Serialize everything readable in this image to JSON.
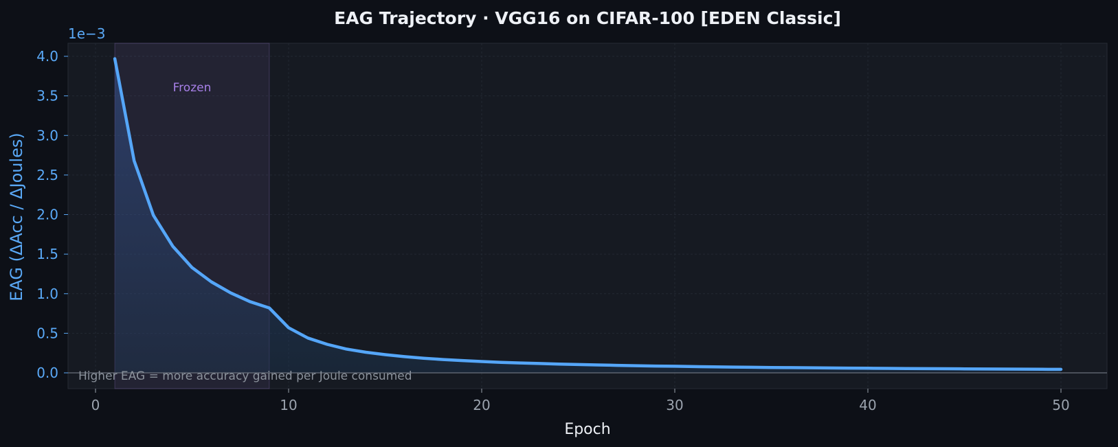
{
  "chart_data": {
    "type": "line",
    "title": "EAG Trajectory  ·  VGG16 on CIFAR-100  [EDEN Classic]",
    "xlabel": "Epoch",
    "ylabel": "EAG  (ΔAcc / ΔJoules)",
    "y_offset_label": "1e−3",
    "xlim": [
      -1.5,
      52.5
    ],
    "ylim": [
      -0.0002,
      0.00417
    ],
    "x_ticks": [
      0,
      10,
      20,
      30,
      40,
      50
    ],
    "y_ticks": [
      0.0,
      0.0005,
      0.001,
      0.0015,
      0.002,
      0.0025,
      0.003,
      0.0035,
      0.004
    ],
    "y_tick_labels": [
      "0.0",
      "0.5",
      "1.0",
      "1.5",
      "2.0",
      "2.5",
      "3.0",
      "3.5",
      "4.0"
    ],
    "grid": true,
    "fill_under": true,
    "series": [
      {
        "x": [
          1,
          2,
          3,
          4,
          5,
          6,
          7,
          8,
          9,
          10,
          11,
          12,
          13,
          14,
          15,
          16,
          17,
          18,
          19,
          20,
          21,
          22,
          23,
          24,
          25,
          26,
          27,
          28,
          29,
          30,
          31,
          32,
          33,
          34,
          35,
          36,
          37,
          38,
          39,
          40,
          41,
          42,
          43,
          44,
          45,
          46,
          47,
          48,
          49,
          50
        ],
        "values": [
          0.00397,
          0.00268,
          0.00199,
          0.0016,
          0.00133,
          0.00115,
          0.00101,
          0.0009,
          0.00082,
          0.00057,
          0.00044,
          0.00036,
          0.0003,
          0.00026,
          0.00023,
          0.000205,
          0.000185,
          0.000168,
          0.000155,
          0.000143,
          0.000133,
          0.000125,
          0.000118,
          0.000111,
          0.000105,
          0.0001,
          9.5e-05,
          9e-05,
          8.6e-05,
          8.3e-05,
          7.9e-05,
          7.6e-05,
          7.3e-05,
          7e-05,
          6.8e-05,
          6.6e-05,
          6.4e-05,
          6.2e-05,
          6e-05,
          5.8e-05,
          5.6e-05,
          5.5e-05,
          5.3e-05,
          5.2e-05,
          5e-05,
          4.9e-05,
          4.8e-05,
          4.7e-05,
          4.5e-05,
          4.4e-05
        ],
        "color": "#55a6f8"
      }
    ],
    "shaded_region": {
      "x_start": 1,
      "x_end": 9,
      "label": "Frozen",
      "color": "#a780e8"
    },
    "annotation": "Higher EAG = more accuracy gained per Joule consumed",
    "colors": {
      "background": "#0d1017",
      "plot_background": "#161a22",
      "line": "#55a6f8",
      "y_axis_text": "#5aa9f7",
      "x_tick_text": "#9ba3ae",
      "title_text": "#eef1f6",
      "region_label": "#a780e8",
      "annotation_text": "#8b929c"
    }
  }
}
